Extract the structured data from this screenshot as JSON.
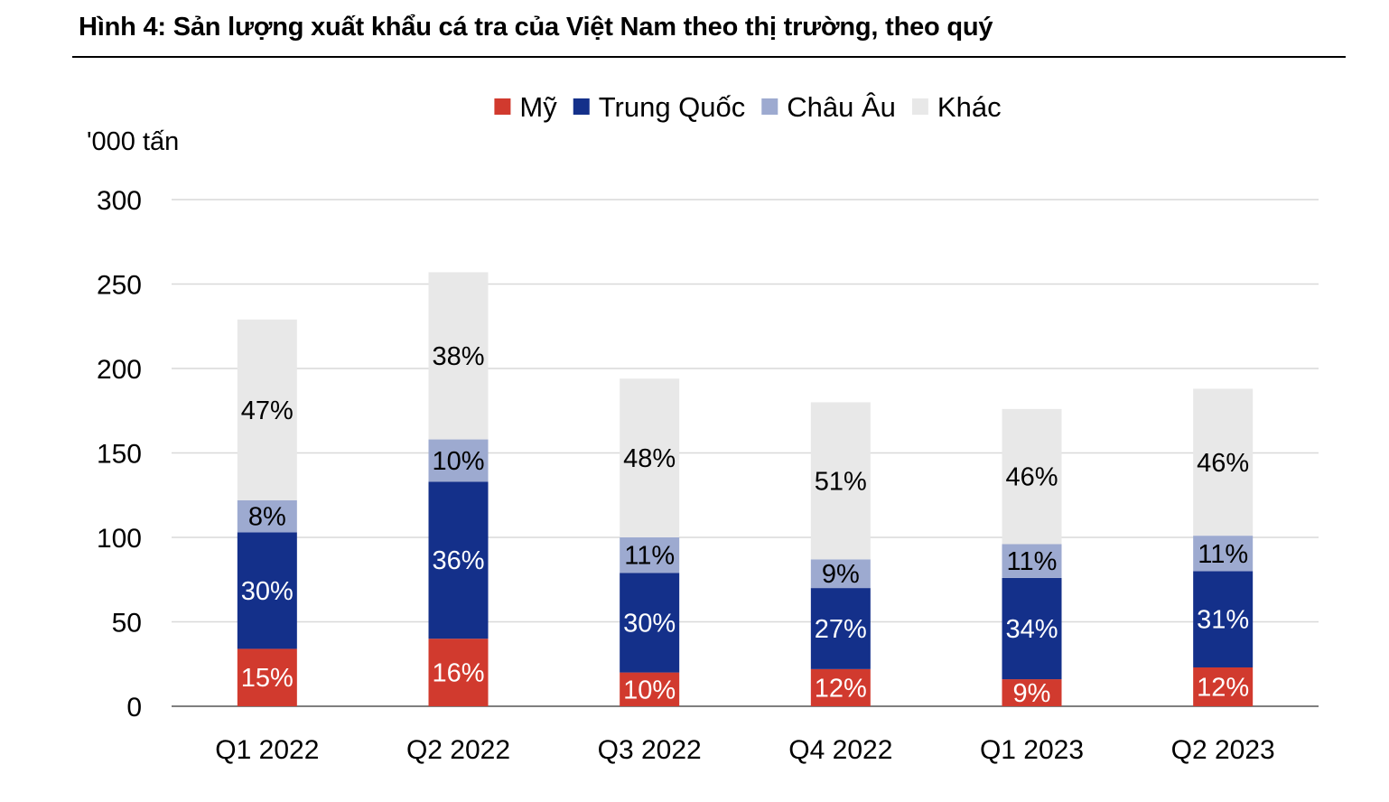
{
  "chart_data": {
    "type": "bar",
    "stacked": true,
    "title": "Hình 4: Sản lượng xuất khẩu cá tra của Việt Nam theo thị trường, theo quý",
    "unit_label": "'000 tấn",
    "ylim": [
      0,
      300
    ],
    "yticks": [
      0,
      50,
      100,
      150,
      200,
      250,
      300
    ],
    "grid": true,
    "legend_position": "top",
    "categories": [
      "Q1 2022",
      "Q2 2022",
      "Q3 2022",
      "Q4 2022",
      "Q1 2023",
      "Q2 2023"
    ],
    "series": [
      {
        "name": "Mỹ",
        "color": "#D13A2E",
        "label_color": "#ffffff",
        "values": [
          34,
          40,
          20,
          22,
          16,
          23
        ],
        "labels": [
          "15%",
          "16%",
          "10%",
          "12%",
          "9%",
          "12%"
        ]
      },
      {
        "name": "Trung Quốc",
        "color": "#14308A",
        "label_color": "#ffffff",
        "values": [
          69,
          93,
          59,
          48,
          60,
          57
        ],
        "labels": [
          "30%",
          "36%",
          "30%",
          "27%",
          "34%",
          "31%"
        ]
      },
      {
        "name": "Châu Âu",
        "color": "#9DAAD0",
        "label_color": "#000000",
        "values": [
          19,
          25,
          21,
          17,
          20,
          21
        ],
        "labels": [
          "8%",
          "10%",
          "11%",
          "9%",
          "11%",
          "11%"
        ]
      },
      {
        "name": "Khác",
        "color": "#E8E8E8",
        "label_color": "#000000",
        "values": [
          107,
          99,
          94,
          93,
          80,
          87
        ],
        "labels": [
          "47%",
          "38%",
          "48%",
          "51%",
          "46%",
          "46%"
        ]
      }
    ]
  }
}
